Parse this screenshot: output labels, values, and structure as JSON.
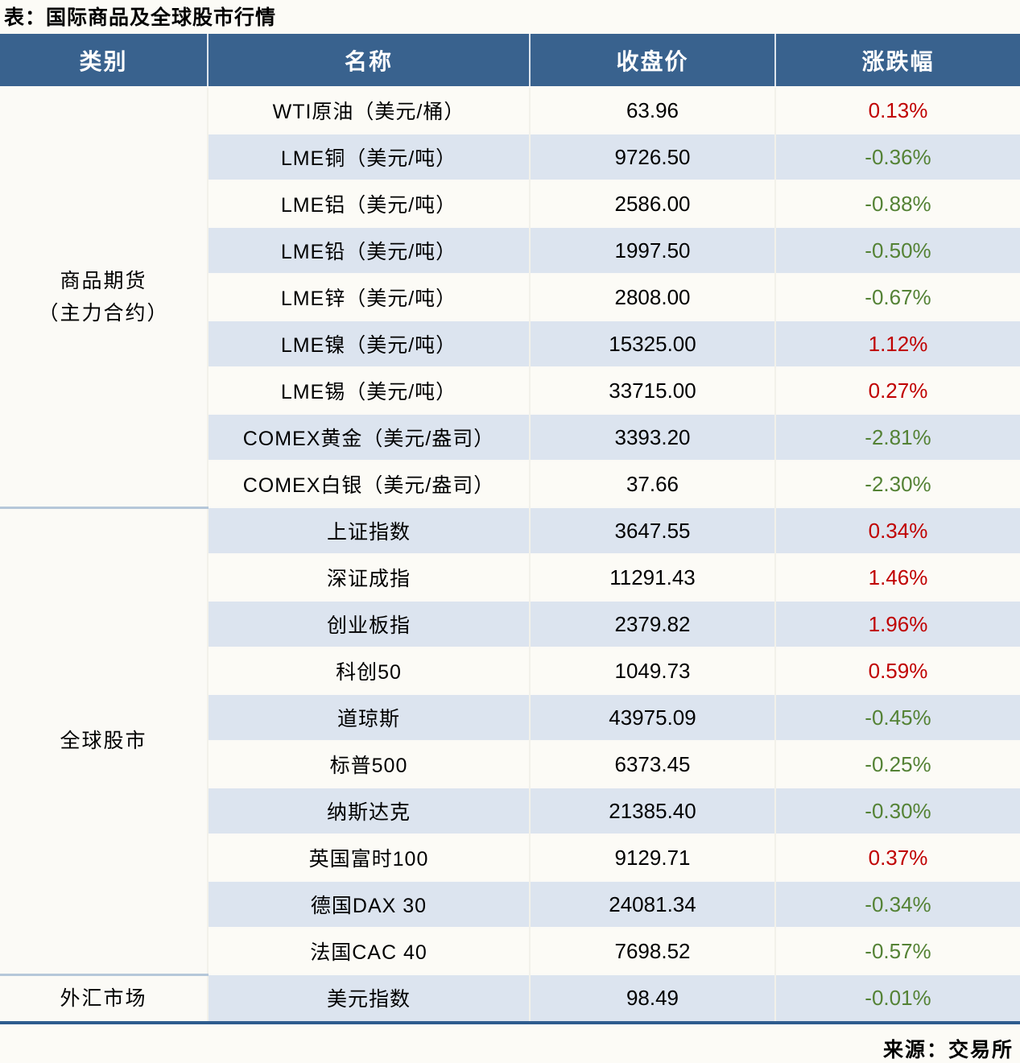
{
  "title": "表：国际商品及全球股市行情",
  "source": "来源：交易所",
  "colors": {
    "up": "#c00000",
    "down": "#548235",
    "header_bg": "#39628e",
    "header_text": "#ffffff",
    "row_alt_bg": "#dce4ef",
    "row_base_bg": "#fcfbf6",
    "section_divider": "#b5c7d9",
    "bottom_border": "#2e5c8e"
  },
  "chart_data": {
    "type": "table",
    "title": "表：国际商品及全球股市行情",
    "source": "来源：交易所",
    "columns": [
      "类别",
      "名称",
      "收盘价",
      "涨跌幅"
    ],
    "sections": [
      {
        "category_lines": [
          "商品期货",
          "（主力合约）"
        ],
        "rows": [
          {
            "name": "WTI原油（美元/桶）",
            "close": "63.96",
            "change": "0.13%",
            "direction": "up"
          },
          {
            "name": "LME铜（美元/吨）",
            "close": "9726.50",
            "change": "-0.36%",
            "direction": "down"
          },
          {
            "name": "LME铝（美元/吨）",
            "close": "2586.00",
            "change": "-0.88%",
            "direction": "down"
          },
          {
            "name": "LME铅（美元/吨）",
            "close": "1997.50",
            "change": "-0.50%",
            "direction": "down"
          },
          {
            "name": "LME锌（美元/吨）",
            "close": "2808.00",
            "change": "-0.67%",
            "direction": "down"
          },
          {
            "name": "LME镍（美元/吨）",
            "close": "15325.00",
            "change": "1.12%",
            "direction": "up"
          },
          {
            "name": "LME锡（美元/吨）",
            "close": "33715.00",
            "change": "0.27%",
            "direction": "up"
          },
          {
            "name": "COMEX黄金（美元/盎司）",
            "close": "3393.20",
            "change": "-2.81%",
            "direction": "down"
          },
          {
            "name": "COMEX白银（美元/盎司）",
            "close": "37.66",
            "change": "-2.30%",
            "direction": "down"
          }
        ]
      },
      {
        "category_lines": [
          "全球股市"
        ],
        "rows": [
          {
            "name": "上证指数",
            "close": "3647.55",
            "change": "0.34%",
            "direction": "up"
          },
          {
            "name": "深证成指",
            "close": "11291.43",
            "change": "1.46%",
            "direction": "up"
          },
          {
            "name": "创业板指",
            "close": "2379.82",
            "change": "1.96%",
            "direction": "up"
          },
          {
            "name": "科创50",
            "close": "1049.73",
            "change": "0.59%",
            "direction": "up"
          },
          {
            "name": "道琼斯",
            "close": "43975.09",
            "change": "-0.45%",
            "direction": "down"
          },
          {
            "name": "标普500",
            "close": "6373.45",
            "change": "-0.25%",
            "direction": "down"
          },
          {
            "name": "纳斯达克",
            "close": "21385.40",
            "change": "-0.30%",
            "direction": "down"
          },
          {
            "name": "英国富时100",
            "close": "9129.71",
            "change": "0.37%",
            "direction": "up"
          },
          {
            "name": "德国DAX 30",
            "close": "24081.34",
            "change": "-0.34%",
            "direction": "down"
          },
          {
            "name": "法国CAC 40",
            "close": "7698.52",
            "change": "-0.57%",
            "direction": "down"
          }
        ]
      },
      {
        "category_lines": [
          "外汇市场"
        ],
        "rows": [
          {
            "name": "美元指数",
            "close": "98.49",
            "change": "-0.01%",
            "direction": "down"
          }
        ]
      }
    ]
  }
}
